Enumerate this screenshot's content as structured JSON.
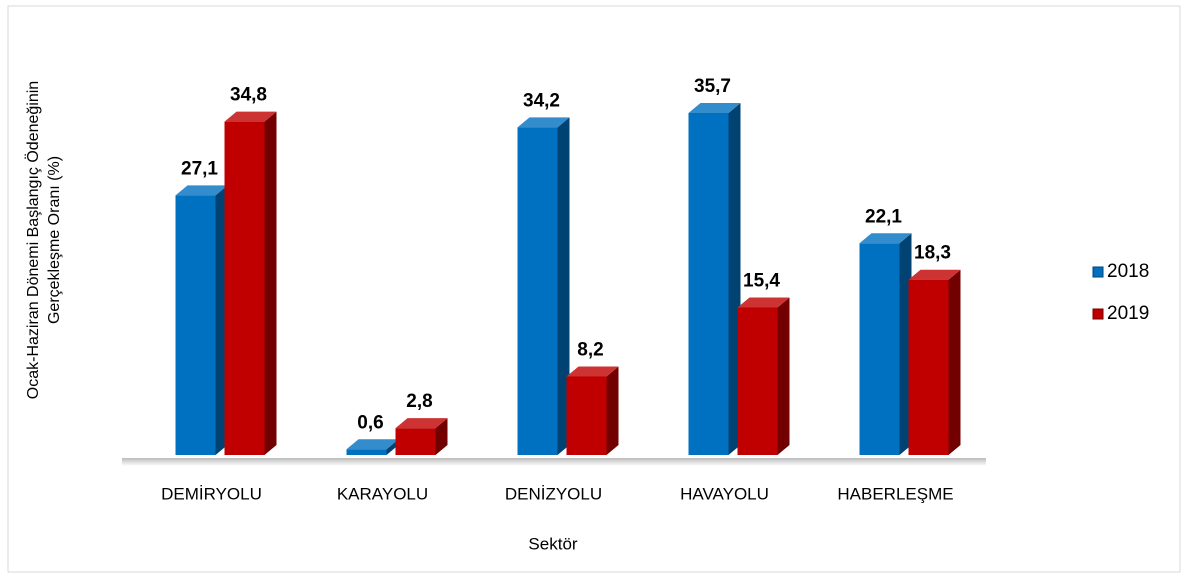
{
  "chart_data": {
    "type": "bar3d",
    "y_label": [
      "Ocak-Haziran Dönemi Başlangıç Ödeneğinin",
      "Gerçekleşme Oranı (%)"
    ],
    "x_label": "Sektör",
    "categories": [
      "DEMİRYOLU",
      "KARAYOLU",
      "DENİZYOLU",
      "HAVAYOLU",
      "HABERLEŞME"
    ],
    "series": [
      {
        "name": "2018",
        "color": "#0070c0",
        "values": [
          27.1,
          0.6,
          34.2,
          35.7,
          22.1
        ],
        "value_labels": [
          "27,1",
          "0,6",
          "34,2",
          "35,7",
          "22,1"
        ]
      },
      {
        "name": "2019",
        "color": "#c00000",
        "values": [
          34.8,
          2.8,
          8.2,
          15.4,
          18.3
        ],
        "value_labels": [
          "34,8",
          "2,8",
          "8,2",
          "15,4",
          "18,3"
        ]
      }
    ],
    "legend": "right"
  }
}
